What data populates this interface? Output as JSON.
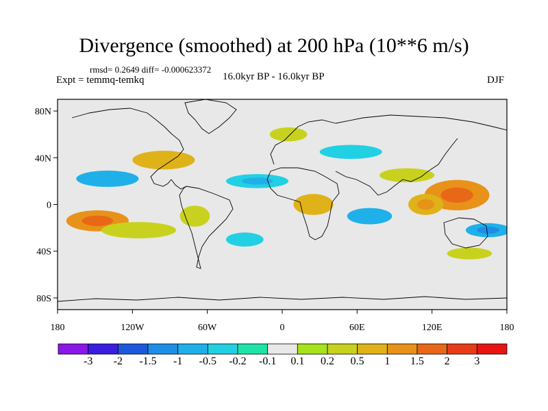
{
  "title": "Divergence (smoothed) at 200 hPa (10**6 m/s)",
  "stats_line": "rmsd= 0.2649 diff= -0.000623372",
  "experiment": "Expt = temmq-temkq",
  "period": "16.0kyr BP - 16.0kyr BP",
  "season": "DJF",
  "lat_ticks": [
    "80N",
    "40N",
    "0",
    "40S",
    "80S"
  ],
  "lon_ticks": [
    "180",
    "120W",
    "60W",
    "0",
    "60E",
    "120E",
    "180"
  ],
  "colorbar": {
    "labels": [
      "-3",
      "-2",
      "-1.5",
      "-1",
      "-0.5",
      "-0.2",
      "-0.1",
      "0.1",
      "0.2",
      "0.5",
      "1",
      "1.5",
      "2",
      "3"
    ],
    "colors": [
      "#8a18e8",
      "#3a1de0",
      "#1c58dc",
      "#1c8ee6",
      "#1fb0ea",
      "#22d0e4",
      "#1ee3a8",
      "#e8e8e8",
      "#a8e21c",
      "#c8d21e",
      "#e0b21a",
      "#e8921a",
      "#e86818",
      "#e83c16",
      "#e81414"
    ]
  },
  "chart_data": {
    "type": "filled-contour-map",
    "variable": "Divergence (smoothed) at 200 hPa",
    "units": "10**6 m/s",
    "x_range": [
      -180,
      180
    ],
    "y_range": [
      -90,
      90
    ],
    "levels": [
      -3,
      -2,
      -1.5,
      -1,
      -0.5,
      -0.2,
      -0.1,
      0.1,
      0.2,
      0.5,
      1,
      1.5,
      2,
      3
    ],
    "features": [
      {
        "name": "west-pacific-positive",
        "lon": 140,
        "lat": 8,
        "rlon": 26,
        "rlat": 13,
        "value": 1.2
      },
      {
        "name": "maritime-positive",
        "lon": 115,
        "lat": 0,
        "rlon": 14,
        "rlat": 9,
        "value": 0.8
      },
      {
        "name": "south-pacific-positive",
        "lon": -148,
        "lat": -14,
        "rlon": 25,
        "rlat": 9,
        "value": 1.1
      },
      {
        "name": "south-pacific-band",
        "lon": -115,
        "lat": -22,
        "rlon": 30,
        "rlat": 7,
        "value": 0.4
      },
      {
        "name": "africa-positive",
        "lon": 25,
        "lat": 0,
        "rlon": 16,
        "rlat": 9,
        "value": 0.5
      },
      {
        "name": "indian-ocean-negative",
        "lon": 70,
        "lat": -10,
        "rlon": 18,
        "rlat": 7,
        "value": -0.6
      },
      {
        "name": "pacific-negative-band",
        "lon": 165,
        "lat": -22,
        "rlon": 18,
        "rlat": 6,
        "value": -0.7
      },
      {
        "name": "atlantic-negative",
        "lon": -20,
        "lat": 20,
        "rlon": 25,
        "rlat": 6,
        "value": -0.5
      },
      {
        "name": "n-america-positive",
        "lon": -95,
        "lat": 38,
        "rlon": 25,
        "rlat": 8,
        "value": 0.5
      },
      {
        "name": "n-pacific-negative",
        "lon": -140,
        "lat": 22,
        "rlon": 25,
        "rlat": 7,
        "value": -0.6
      },
      {
        "name": "europe-positive",
        "lon": 5,
        "lat": 60,
        "rlon": 15,
        "rlat": 6,
        "value": 0.4
      },
      {
        "name": "asia-negative",
        "lon": 55,
        "lat": 45,
        "rlon": 25,
        "rlat": 6,
        "value": -0.4
      },
      {
        "name": "china-positive",
        "lon": 100,
        "lat": 25,
        "rlon": 22,
        "rlat": 6,
        "value": 0.3
      },
      {
        "name": "s-america-positive",
        "lon": -70,
        "lat": -10,
        "rlon": 12,
        "rlat": 9,
        "value": 0.3
      },
      {
        "name": "s-atlantic-negative",
        "lon": -30,
        "lat": -30,
        "rlon": 15,
        "rlat": 6,
        "value": -0.3
      },
      {
        "name": "s-pacific-positive",
        "lon": 150,
        "lat": -42,
        "rlon": 18,
        "rlat": 5,
        "value": 0.3
      }
    ]
  }
}
